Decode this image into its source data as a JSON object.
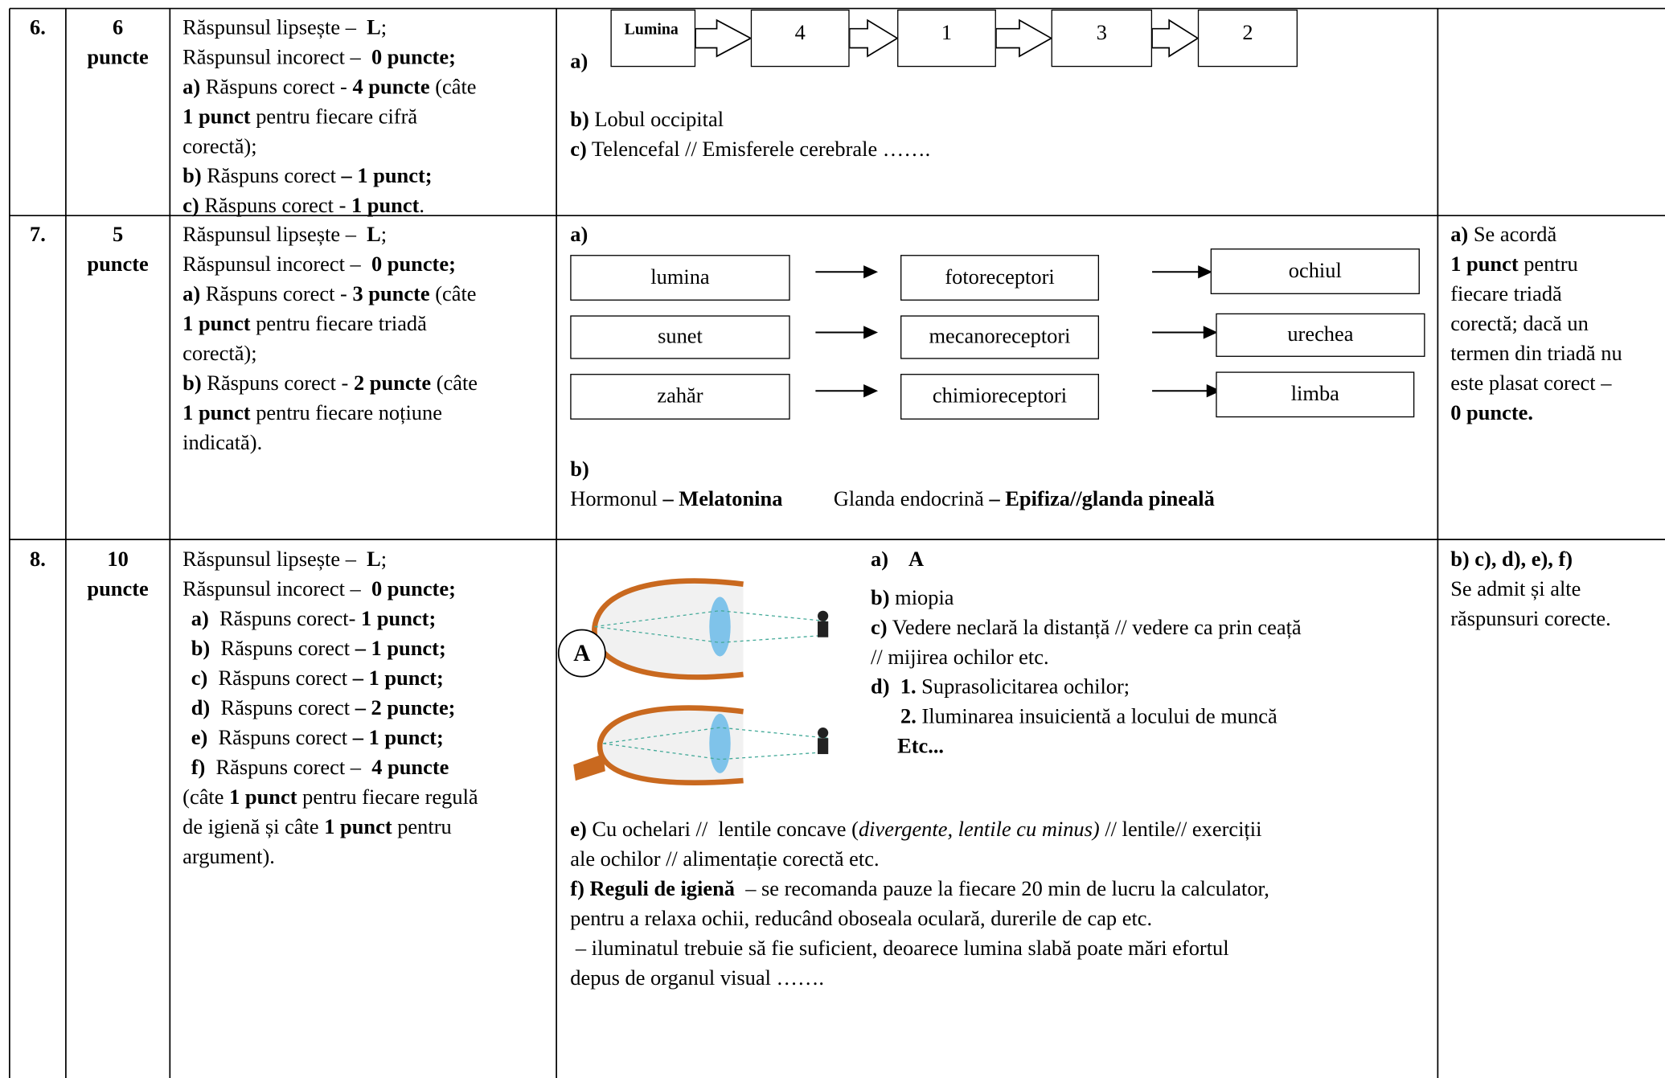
{
  "rows": [
    {
      "number": "6.",
      "points": [
        "6",
        "puncte"
      ],
      "criteria": [
        [
          "Răspunsul lipsește –  ",
          "L",
          ";"
        ],
        [
          "Răspunsul incorect –  ",
          "0 puncte;"
        ],
        [
          "a)",
          " Răspuns corect - ",
          "4 puncte",
          " (câte"
        ],
        [
          "1 punct",
          " pentru fiecare cifră"
        ],
        [
          "corectă);"
        ],
        [
          "b)",
          " Răspuns corect ",
          "– 1 punct;"
        ],
        [
          "c)",
          " Răspuns corect - ",
          "1 punct",
          "."
        ]
      ],
      "answer": {
        "a_label": "a)",
        "flow": [
          "Lumina",
          "4",
          "1",
          "3",
          "2"
        ],
        "lines": [
          [
            "b)",
            " Lobul occipital"
          ],
          [
            "c)",
            " Telencefal // Emisferele cerebrale ……."
          ]
        ]
      }
    },
    {
      "number": "7.",
      "points": [
        "5",
        "puncte"
      ],
      "criteria": [
        [
          "Răspunsul lipsește –  ",
          "L",
          ";"
        ],
        [
          "Răspunsul incorect –  ",
          "0 puncte;"
        ],
        [
          "a)",
          " Răspuns corect - ",
          "3 puncte",
          " (câte"
        ],
        [
          "1 punct",
          " pentru fiecare triadă"
        ],
        [
          "corectă);"
        ],
        [
          "b)",
          " Răspuns corect - ",
          "2 puncte",
          " (câte"
        ],
        [
          "1 punct",
          " pentru fiecare noțiune"
        ],
        [
          "indicată)."
        ]
      ],
      "answer": {
        "a_label": "a)",
        "grid": [
          [
            "lumina",
            "fotoreceptori",
            "ochiul"
          ],
          [
            "sunet",
            "mecanoreceptori",
            "urechea"
          ],
          [
            "zahăr",
            "chimioreceptori",
            "limba"
          ]
        ],
        "b_label": "b)",
        "line": [
          "Hormonul ",
          "– Melatonina",
          "Glanda endocrină ",
          "– Epifiza//glanda pineală"
        ]
      },
      "note": [
        [
          "a)",
          " Se acordă"
        ],
        [
          "1 punct",
          " pentru"
        ],
        [
          "fiecare triadă"
        ],
        [
          "corectă; dacă un"
        ],
        [
          "termen din triadă nu"
        ],
        [
          "este plasat corect –"
        ],
        [
          "0 puncte."
        ]
      ]
    },
    {
      "number": "8.",
      "points": [
        "10",
        "puncte"
      ],
      "criteria": [
        [
          "Răspunsul lipsește –  ",
          "L",
          ";"
        ],
        [
          "Răspunsul incorect –  ",
          "0 puncte;"
        ],
        [
          "a)",
          "  Răspuns corect- ",
          "1 punct;"
        ],
        [
          "b)",
          "  Răspuns corect ",
          "– 1 punct;"
        ],
        [
          "c)",
          "  Răspuns corect ",
          "– 1 punct;"
        ],
        [
          "d)",
          "  Răspuns corect ",
          "– 2 puncte;"
        ],
        [
          "e)",
          "  Răspuns corect ",
          "– 1 punct;"
        ],
        [
          "f)",
          "  Răspuns corect –  ",
          "4 puncte"
        ],
        [
          "(câte ",
          "1 punct",
          " pentru fiecare regulă"
        ],
        [
          "de igienă și câte ",
          "1 punct",
          " pentru"
        ],
        [
          "argument)."
        ]
      ],
      "answer": {
        "figure_label": "A",
        "side": [
          [
            "a)    ",
            "A"
          ],
          [
            "b)",
            " miopia"
          ],
          [
            "c)",
            " Vedere neclară la distanță // vedere ca prin ceață"
          ],
          [
            "// mijirea ochilor etc."
          ],
          [
            "d)  ",
            "1.",
            " Suprasolicitarea ochilor;"
          ],
          [
            "2.",
            " Iluminarea insuicientă a locului de muncă"
          ],
          [
            "Etc..."
          ]
        ],
        "lines": [
          [
            "e)",
            " Cu ochelari //  lentile concave (",
            "divergente, lentile cu minus)",
            " // lentile// exerciții"
          ],
          [
            "ale ochilor // alimentație corectă etc."
          ],
          [
            "f) Reguli de igienă",
            "  – se recomanda pauze la fiecare 20 min de lucru la calculator,"
          ],
          [
            "pentru a relaxa ochii, reducând oboseala oculară, durerile de cap etc."
          ],
          [
            " – iluminatul trebuie să fie suficient, deoarece lumina slabă poate mări efortul"
          ],
          [
            "depus de organul visual ……."
          ]
        ]
      },
      "note": [
        [
          "b) c), d), e), f)"
        ],
        [
          "Se admit și alte"
        ],
        [
          "răspunsuri corecte."
        ]
      ]
    }
  ]
}
